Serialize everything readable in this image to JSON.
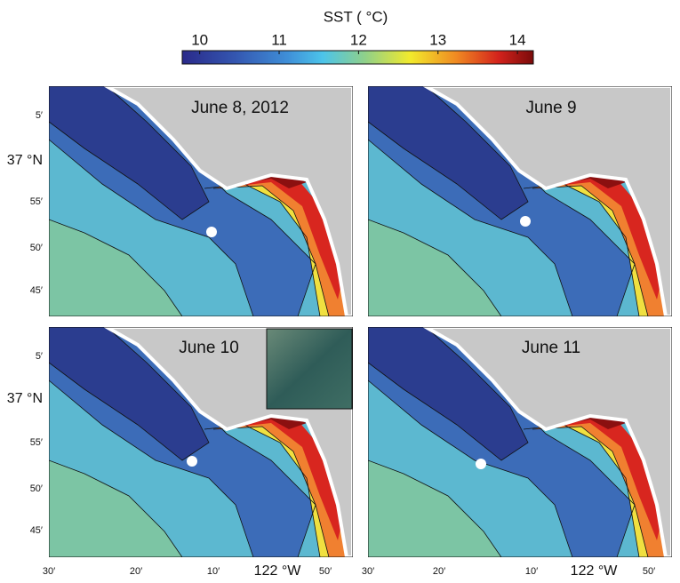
{
  "colorbar": {
    "title": "SST ( °C)",
    "range": [
      9.78,
      14.2
    ],
    "ticks": [
      10,
      11,
      12,
      13,
      14
    ]
  },
  "panels": [
    {
      "title": "June 8, 2012"
    },
    {
      "title": "June 9"
    },
    {
      "title": "June 10"
    },
    {
      "title": "June 11"
    }
  ],
  "y_labels": [
    "5′",
    "37 °N",
    "55′",
    "50′",
    "45′"
  ],
  "x_labels": [
    "30′",
    "20′",
    "10′",
    "122 °W",
    "50′"
  ]
}
